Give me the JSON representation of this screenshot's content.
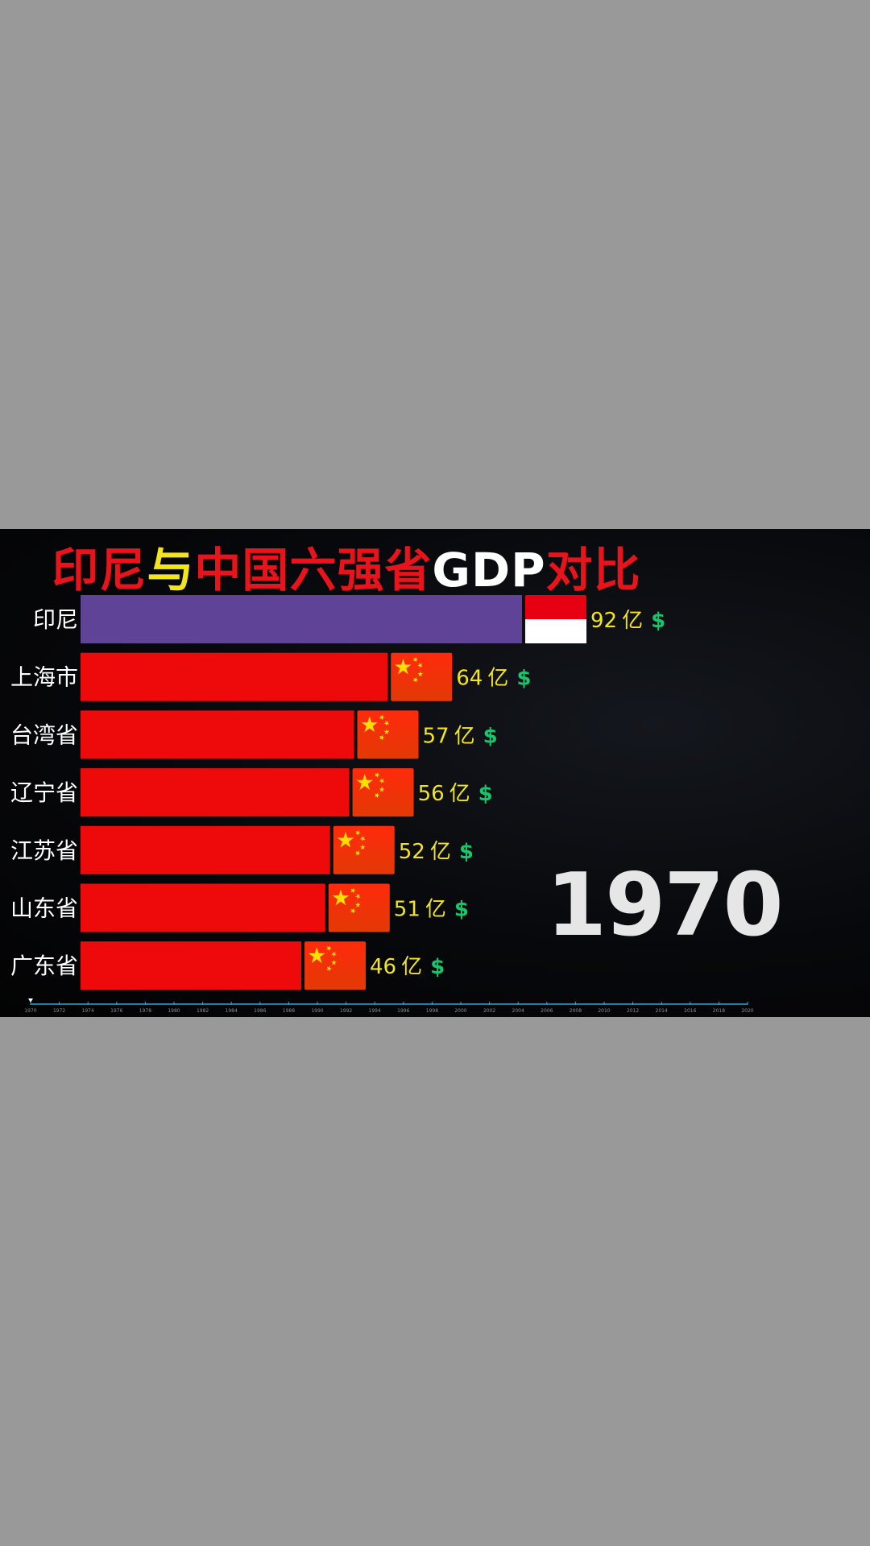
{
  "title": {
    "segments": [
      {
        "text": "印尼",
        "color": "#e8141b"
      },
      {
        "text": "与",
        "color": "#f2e51f"
      },
      {
        "text": "中国六强省",
        "color": "#e8141b"
      },
      {
        "text": "GDP",
        "color": "#ffffff"
      },
      {
        "text": "对比",
        "color": "#e8141b"
      }
    ]
  },
  "year": "1970",
  "value_suffix": "亿",
  "currency_symbol": "$",
  "colors": {
    "value_text": "#f2e51f",
    "currency": "#19c46b",
    "china_bar": "#ee0a0a",
    "indonesia_bar": "#5e4396",
    "label": "#ffffff",
    "timeline": "#2aa6c8"
  },
  "chart_data": {
    "type": "bar",
    "orientation": "horizontal",
    "title": "印尼与中国六强省GDP对比",
    "categories": [
      "印尼",
      "上海市",
      "台湾省",
      "辽宁省",
      "江苏省",
      "山东省",
      "广东省"
    ],
    "values": [
      92,
      64,
      57,
      56,
      52,
      51,
      46
    ],
    "value_labels": [
      "92",
      "64",
      "57",
      "56",
      "52",
      "51",
      "46"
    ],
    "unit": "亿 $",
    "bar_colors": [
      "#5e4396",
      "#ee0a0a",
      "#ee0a0a",
      "#ee0a0a",
      "#ee0a0a",
      "#ee0a0a",
      "#ee0a0a"
    ],
    "flags": [
      "indonesia-flag",
      "china-flag",
      "china-flag",
      "china-flag",
      "china-flag",
      "china-flag",
      "china-flag"
    ],
    "xlim": [
      0,
      92
    ],
    "timeline": {
      "start": 1970,
      "end": 2020,
      "ticks": [
        "1970",
        "1972",
        "1974",
        "1976",
        "1978",
        "1980",
        "1982",
        "1984",
        "1986",
        "1988",
        "1990",
        "1992",
        "1994",
        "1996",
        "1998",
        "2000",
        "2002",
        "2004",
        "2006",
        "2008",
        "2010",
        "2012",
        "2014",
        "2016",
        "2018",
        "2020"
      ],
      "current": "1970"
    }
  }
}
